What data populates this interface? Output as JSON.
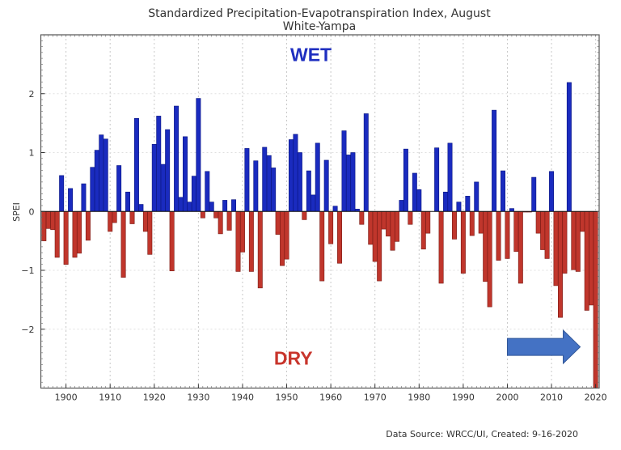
{
  "chart_data": {
    "type": "bar",
    "title": "Standardized Precipitation-Evapotranspiration Index, August",
    "subtitle": "White-Yampa",
    "xlabel": "",
    "ylabel": "SPEI",
    "xlim": [
      1894.3,
      2020.8
    ],
    "ylim": [
      -3,
      3
    ],
    "grid": true,
    "x_ticks": [
      1900,
      1910,
      1920,
      1930,
      1940,
      1950,
      1960,
      1970,
      1980,
      1990,
      2000,
      2010,
      2020
    ],
    "x_tick_labels": [
      "1900",
      "1910",
      "1920",
      "1930",
      "1940",
      "1950",
      "1960",
      "1970",
      "1980",
      "1990",
      "2000",
      "2010",
      "2020"
    ],
    "y_ticks": [
      -2,
      -1,
      0,
      1,
      2
    ],
    "y_tick_labels": [
      "−2",
      "−1",
      "0",
      "1",
      "2"
    ],
    "colors": {
      "positive": "#1a2bbf",
      "negative": "#c0362c",
      "positive_edge": "#0a1680",
      "negative_edge": "#7a1a14"
    },
    "annotations": [
      {
        "text": "WET",
        "color": "#1f2fc0",
        "x": 1955.5,
        "y": 2.55
      },
      {
        "text": "DRY",
        "color": "#c8352c",
        "x": 1951.5,
        "y": -2.6
      }
    ],
    "arrow": {
      "color": "#4472c4",
      "from_x": 2000,
      "to_x": 2016.5,
      "y": -2.3
    },
    "source": "Data Source: WRCC/UI, Created: 9-16-2020",
    "x": [
      1895,
      1896,
      1897,
      1898,
      1899,
      1900,
      1901,
      1902,
      1903,
      1904,
      1905,
      1906,
      1907,
      1908,
      1909,
      1910,
      1911,
      1912,
      1913,
      1914,
      1915,
      1916,
      1917,
      1918,
      1919,
      1920,
      1921,
      1922,
      1923,
      1924,
      1925,
      1926,
      1927,
      1928,
      1929,
      1930,
      1931,
      1932,
      1933,
      1934,
      1935,
      1936,
      1937,
      1938,
      1939,
      1940,
      1941,
      1942,
      1943,
      1944,
      1945,
      1946,
      1947,
      1948,
      1949,
      1950,
      1951,
      1952,
      1953,
      1954,
      1955,
      1956,
      1957,
      1958,
      1959,
      1960,
      1961,
      1962,
      1963,
      1964,
      1965,
      1966,
      1967,
      1968,
      1969,
      1970,
      1971,
      1972,
      1973,
      1974,
      1975,
      1976,
      1977,
      1978,
      1979,
      1980,
      1981,
      1982,
      1983,
      1984,
      1985,
      1986,
      1987,
      1988,
      1989,
      1990,
      1991,
      1992,
      1993,
      1994,
      1995,
      1996,
      1997,
      1998,
      1999,
      2000,
      2001,
      2002,
      2003,
      2004,
      2005,
      2006,
      2007,
      2008,
      2009,
      2010,
      2011,
      2012,
      2013,
      2014,
      2015,
      2016,
      2017,
      2018,
      2019,
      2020
    ],
    "values": [
      -0.5,
      -0.29,
      -0.31,
      -0.78,
      0.61,
      -0.9,
      0.39,
      -0.78,
      -0.71,
      0.47,
      -0.49,
      0.75,
      1.04,
      1.3,
      1.23,
      -0.34,
      -0.19,
      0.78,
      -1.12,
      0.33,
      -0.21,
      1.58,
      0.12,
      -0.34,
      -0.73,
      1.14,
      1.62,
      0.8,
      1.39,
      -1.01,
      1.79,
      0.24,
      1.27,
      0.16,
      0.6,
      1.92,
      -0.11,
      0.68,
      0.16,
      -0.11,
      -0.38,
      0.19,
      -0.32,
      0.2,
      -1.02,
      -0.69,
      1.07,
      -1.02,
      0.86,
      -1.3,
      1.09,
      0.95,
      0.74,
      -0.39,
      -0.92,
      -0.81,
      1.22,
      1.31,
      1.0,
      -0.14,
      0.69,
      0.28,
      1.16,
      -1.18,
      0.87,
      -0.55,
      0.09,
      -0.88,
      1.37,
      0.96,
      1.0,
      0.04,
      -0.22,
      1.66,
      -0.56,
      -0.85,
      -1.18,
      -0.3,
      -0.42,
      -0.66,
      -0.51,
      0.19,
      1.06,
      -0.22,
      0.65,
      0.37,
      -0.64,
      -0.37,
      0.0,
      1.08,
      -1.22,
      0.33,
      1.16,
      -0.47,
      0.16,
      -1.05,
      0.26,
      -0.41,
      0.5,
      -0.37,
      -1.19,
      -1.62,
      1.72,
      -0.83,
      0.69,
      -0.8,
      0.05,
      -0.68,
      -1.22,
      -0.01,
      -0.01,
      0.58,
      -0.37,
      -0.65,
      -0.8,
      0.68,
      -1.26,
      -1.8,
      -1.05,
      2.19,
      -0.99,
      -1.02,
      -0.34,
      -1.68,
      -1.59,
      -3.0
    ]
  }
}
